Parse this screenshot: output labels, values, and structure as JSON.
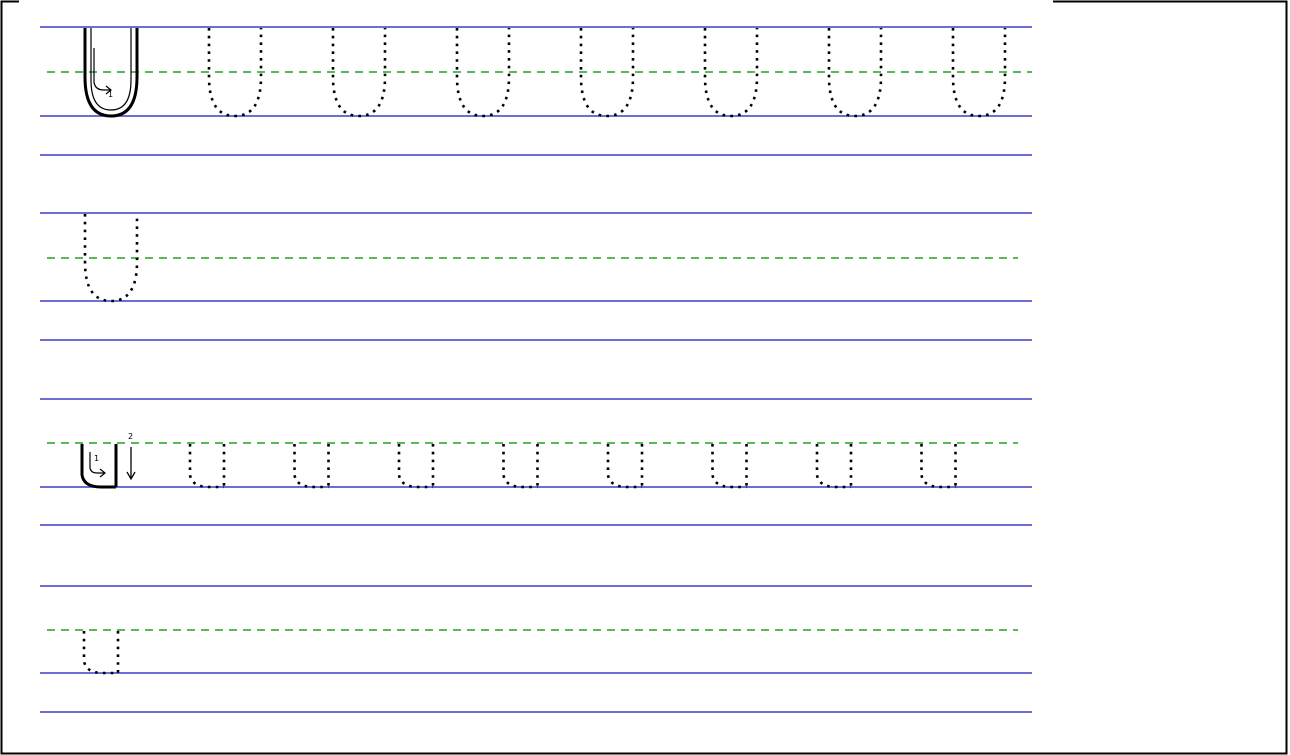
{
  "worksheet": {
    "letter": "U",
    "rows": [
      {
        "case": "uppercase",
        "model": true,
        "trace_count": 7,
        "stroke_numbers": [
          "1"
        ]
      },
      {
        "case": "uppercase",
        "model": false,
        "trace_count": 1,
        "stroke_numbers": []
      },
      {
        "case": "lowercase",
        "model": true,
        "trace_count": 8,
        "stroke_numbers": [
          "1",
          "2"
        ]
      },
      {
        "case": "lowercase",
        "model": false,
        "trace_count": 1,
        "stroke_numbers": []
      }
    ]
  },
  "colors": {
    "rule_line": "#3a3fc4",
    "mid_line": "#22a322",
    "letter": "#000000",
    "border": "#000000"
  }
}
